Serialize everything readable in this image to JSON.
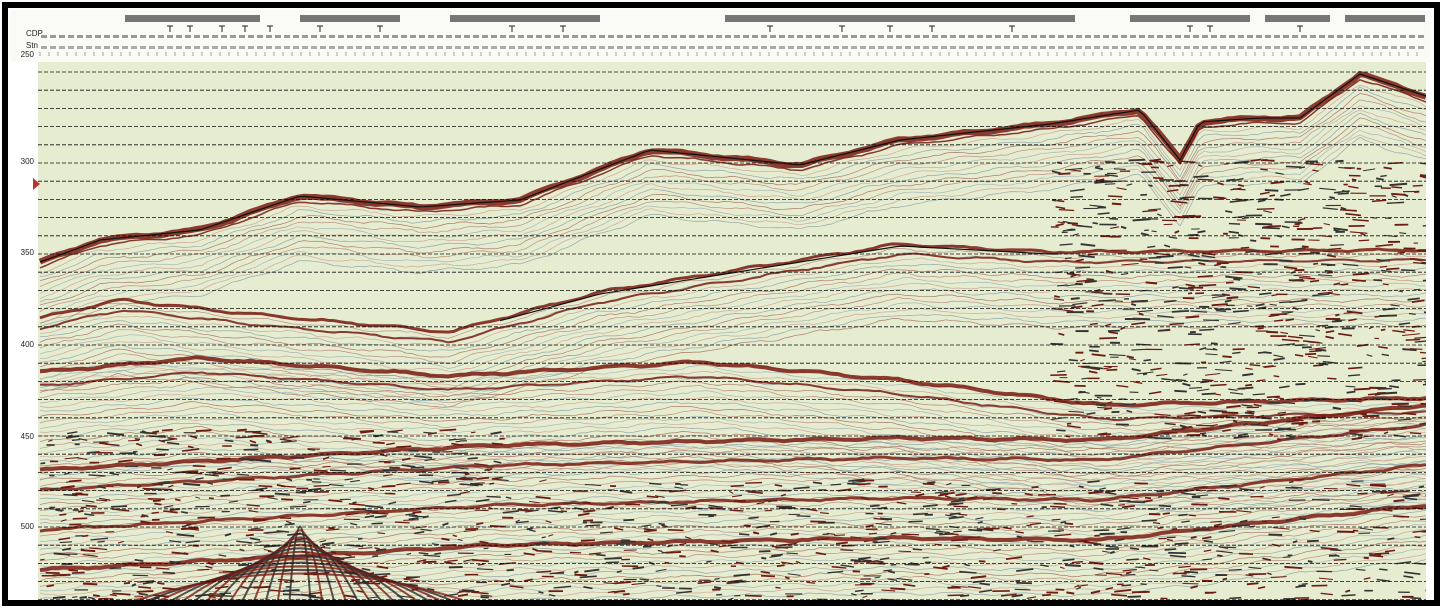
{
  "header": {
    "row_labels": [
      "CDP",
      "Stn"
    ]
  },
  "axis": {
    "labels": [
      250,
      300,
      350,
      400,
      450,
      500
    ]
  }
}
